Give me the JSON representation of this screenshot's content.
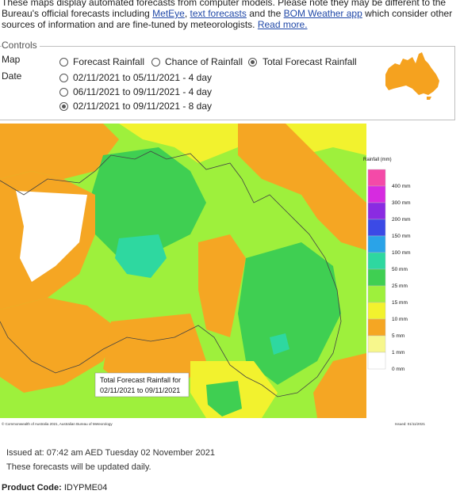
{
  "intro": {
    "line1": "These maps display automated forecasts from computer models. Please note they may be different to the",
    "line2_pre": "Bureau's official forecasts including ",
    "link_meteye": "MetEye",
    "sep1": ", ",
    "link_text": "text forecasts",
    "sep2": " and the ",
    "link_app": "BOM Weather app",
    "line2_post": " which consider other",
    "line3_pre": "sources of information and are fine-tuned by meteorologists. ",
    "link_read": "Read more."
  },
  "controls": {
    "legend": "Controls",
    "map_label": "Map",
    "date_label": "Date",
    "map_options": [
      {
        "label": "Forecast Rainfall",
        "selected": false
      },
      {
        "label": "Chance of Rainfall",
        "selected": false
      },
      {
        "label": "Total Forecast Rainfall",
        "selected": true
      }
    ],
    "date_options": [
      {
        "label": "02/11/2021 to 05/11/2021 - 4 day",
        "selected": false
      },
      {
        "label": "06/11/2021 to 09/11/2021 - 4 day",
        "selected": false
      },
      {
        "label": "02/11/2021 to 09/11/2021 - 8 day",
        "selected": true
      }
    ]
  },
  "map": {
    "title_line1": "Total Forecast Rainfall for",
    "title_line2": "02/11/2021 to 09/11/2021",
    "scale_title": "Rainfall (mm)",
    "scale": [
      {
        "label": "400 mm",
        "color": "#f44aa8"
      },
      {
        "label": "300 mm",
        "color": "#d62be0"
      },
      {
        "label": "200 mm",
        "color": "#8a2be2"
      },
      {
        "label": "150 mm",
        "color": "#3b4ae6"
      },
      {
        "label": "100 mm",
        "color": "#2aa3e8"
      },
      {
        "label": "50 mm",
        "color": "#2ed8a0"
      },
      {
        "label": "25 mm",
        "color": "#3fcf52"
      },
      {
        "label": "15 mm",
        "color": "#9ef03c"
      },
      {
        "label": "10 mm",
        "color": "#f2f22e"
      },
      {
        "label": "5 mm",
        "color": "#f5a623"
      },
      {
        "label": "1 mm",
        "color": "#f7f78c"
      },
      {
        "label": "0 mm",
        "color": "#ffffff"
      }
    ],
    "copyright": "© Commonwealth of Australia 2021, Australian Bureau of Meteorology",
    "issued": "Issued: 01/11/2021"
  },
  "footer": {
    "issued_at": "Issued at: 07:42 am AED Tuesday 02 November 2021",
    "updated": "These forecasts will be updated daily.",
    "product_label": "Product Code:",
    "product_code": "IDYPME04"
  },
  "colors": {
    "link": "#2149a8",
    "australia_icon": "#f5a21f"
  }
}
